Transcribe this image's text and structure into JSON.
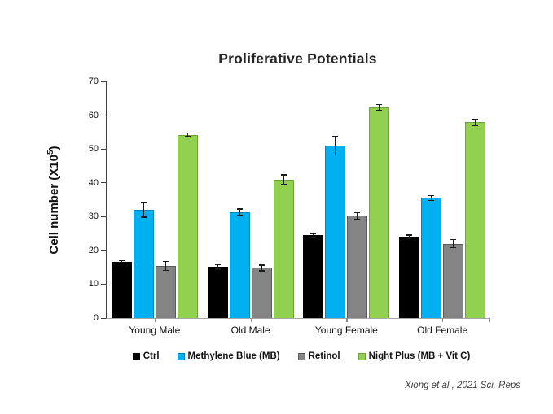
{
  "figure": {
    "title": "Proliferative Potentials",
    "citation": "Xiong et al., 2021 Sci. Reps"
  },
  "ylabel": {
    "prefix": "Cell number (X10",
    "sup": "5",
    "suffix": ")"
  },
  "chart_data": {
    "type": "bar",
    "title": "Proliferative Potentials",
    "xlabel": "",
    "ylabel": "Cell number (X10^5)",
    "ylim": [
      0,
      70
    ],
    "yticks": [
      0,
      10,
      20,
      30,
      40,
      50,
      60,
      70
    ],
    "grid": false,
    "legend_position": "bottom",
    "error_bars": true,
    "categories": [
      "Young Male",
      "Old Male",
      "Young Female",
      "Old Female"
    ],
    "series": [
      {
        "name": "Ctrl",
        "color": "#000000",
        "border": "#000000",
        "values": [
          16.5,
          15.1,
          24.5,
          24.0
        ],
        "errors": [
          0.4,
          0.5,
          0.4,
          0.4
        ]
      },
      {
        "name": "Methylene Blue (MB)",
        "color": "#00b0f0",
        "border": "#0086bd",
        "values": [
          32.0,
          31.3,
          50.9,
          35.5
        ],
        "errors": [
          2.0,
          0.8,
          2.6,
          0.5
        ]
      },
      {
        "name": "Retinol",
        "color": "#848484",
        "border": "#5a5a5a",
        "values": [
          15.4,
          14.8,
          30.2,
          22.0
        ],
        "errors": [
          1.2,
          0.7,
          0.9,
          1.1
        ]
      },
      {
        "name": "Night Plus (MB + Vit C)",
        "color": "#92d050",
        "border": "#6da33a",
        "values": [
          54.2,
          41.0,
          62.4,
          57.9
        ],
        "errors": [
          0.4,
          1.2,
          0.7,
          0.8
        ]
      }
    ],
    "annotation": "Xiong et al., 2021 Sci. Reps"
  }
}
